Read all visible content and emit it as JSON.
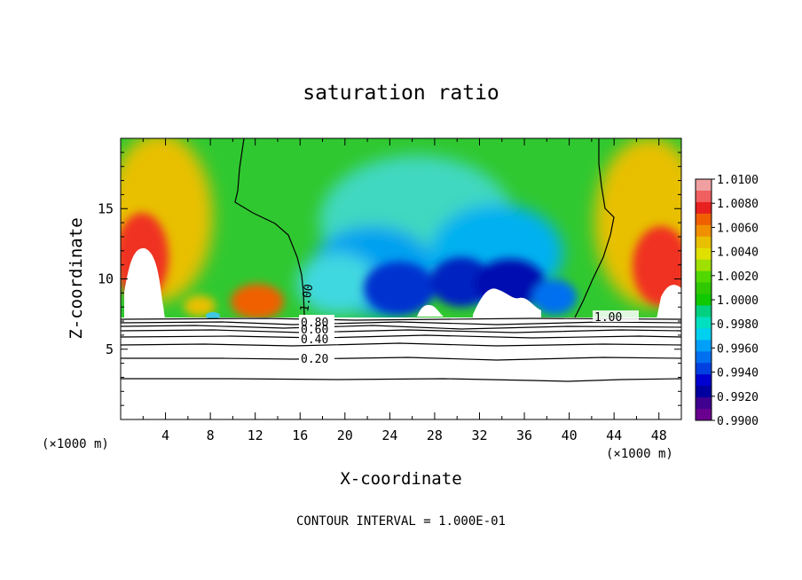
{
  "chart_data": {
    "type": "heatmap",
    "title": "saturation ratio",
    "xlabel": "X-coordinate",
    "ylabel": "Z-coordinate",
    "x_unit": "(×1000 m)",
    "x_unit_right": "(×1000 m)",
    "xlim": [
      0,
      50
    ],
    "ylim": [
      0,
      20
    ],
    "x_ticks": [
      4,
      8,
      12,
      16,
      20,
      24,
      28,
      32,
      36,
      40,
      44,
      48
    ],
    "y_ticks": [
      5,
      10,
      15
    ],
    "footer": "CONTOUR INTERVAL = 1.000E-01",
    "colorbar": {
      "levels": [
        "1.0100",
        "1.0080",
        "1.0060",
        "1.0040",
        "1.0020",
        "1.0000",
        "0.9980",
        "0.9960",
        "0.9940",
        "0.9920",
        "0.9900"
      ],
      "colors": [
        "#f0a0a0",
        "#f06060",
        "#e82020",
        "#f06000",
        "#f09000",
        "#e8c000",
        "#e0e000",
        "#a0e000",
        "#50d800",
        "#30c800",
        "#10c800",
        "#00d080",
        "#00e0c0",
        "#00d0f0",
        "#00a0f8",
        "#0070f0",
        "#0040e0",
        "#0000d0",
        "#0000a0",
        "#400090",
        "#6a0090"
      ]
    },
    "contour_lines": [
      {
        "label": "1.00",
        "x": 16.2,
        "z": 8.7
      },
      {
        "label": "1.00",
        "x": 44.0,
        "z": 7.1
      },
      {
        "label": "0.80",
        "x": 17.6,
        "z": 6.9
      },
      {
        "label": "0.60",
        "x": 17.6,
        "z": 6.4
      },
      {
        "label": "0.40",
        "x": 17.6,
        "z": 5.5
      },
      {
        "label": "0.20",
        "x": 17.6,
        "z": 4.1
      }
    ]
  }
}
